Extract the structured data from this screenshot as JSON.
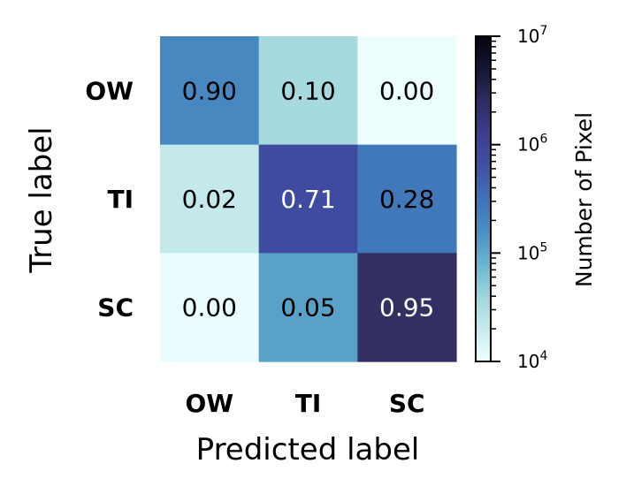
{
  "chart_data": {
    "type": "heatmap",
    "title": "",
    "xlabel": "Predicted label",
    "ylabel": "True label",
    "x_categories": [
      "OW",
      "TI",
      "SC"
    ],
    "y_categories": [
      "OW",
      "TI",
      "SC"
    ],
    "values": [
      [
        0.9,
        0.1,
        0.0
      ],
      [
        0.02,
        0.71,
        0.28
      ],
      [
        0.0,
        0.05,
        0.95
      ]
    ],
    "value_labels": [
      [
        "0.90",
        "0.10",
        "0.00"
      ],
      [
        "0.02",
        "0.71",
        "0.28"
      ],
      [
        "0.00",
        "0.05",
        "0.95"
      ]
    ],
    "cell_colors": [
      [
        "#4688BF",
        "#A6DADE",
        "#EDFEFF"
      ],
      [
        "#C3E9EB",
        "#3F4BA0",
        "#3F79B9"
      ],
      [
        "#EAFCFE",
        "#58A2C8",
        "#332F62"
      ]
    ],
    "colorbar": {
      "label": "Number of Pixel",
      "scale": "log",
      "range": [
        10000,
        10000000
      ],
      "major_ticks": [
        {
          "value": 10000,
          "base": "10",
          "exp": "4"
        },
        {
          "value": 100000,
          "base": "10",
          "exp": "5"
        },
        {
          "value": 1000000,
          "base": "10",
          "exp": "6"
        },
        {
          "value": 10000000,
          "base": "10",
          "exp": "7"
        }
      ],
      "colormap": [
        "#EEFFFF",
        "#C7EBEE",
        "#9FD6DD",
        "#69B5D0",
        "#4A8FC4",
        "#3F72B7",
        "#4151A3",
        "#3E3D8E",
        "#2F2C63",
        "#141634",
        "#050510"
      ]
    }
  }
}
